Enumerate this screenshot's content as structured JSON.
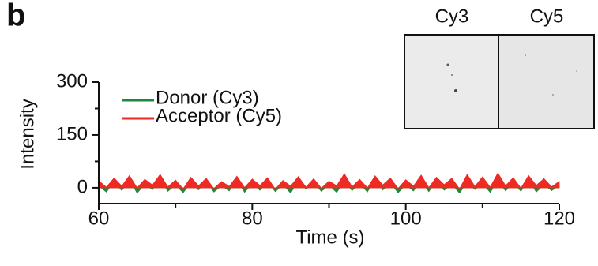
{
  "chart_data": {
    "type": "area",
    "panel_label": "b",
    "x_label": "Time (s)",
    "y_label": "Intensity",
    "xlim": [
      60,
      120
    ],
    "xticks": [
      60,
      80,
      100,
      120
    ],
    "xminorticks": [
      70,
      90,
      110
    ],
    "ylim": [
      -45,
      300
    ],
    "yticks": [
      0,
      150,
      300
    ],
    "yminorticks": [
      75,
      225
    ],
    "x": [
      60,
      61,
      62,
      63,
      64,
      65,
      66,
      67,
      68,
      69,
      70,
      71,
      72,
      73,
      74,
      75,
      76,
      77,
      78,
      79,
      80,
      81,
      82,
      83,
      84,
      85,
      86,
      87,
      88,
      89,
      90,
      91,
      92,
      93,
      94,
      95,
      96,
      97,
      98,
      99,
      100,
      101,
      102,
      103,
      104,
      105,
      106,
      107,
      108,
      109,
      110,
      111,
      112,
      113,
      114,
      115,
      116,
      117,
      118,
      119,
      120
    ],
    "series": [
      {
        "name": "Donor (Cy3)",
        "color": "#1b8a3f",
        "values": [
          5,
          -12,
          18,
          -8,
          22,
          -15,
          10,
          -5,
          25,
          -10,
          8,
          -14,
          15,
          -6,
          20,
          -12,
          6,
          -9,
          24,
          -13,
          12,
          -7,
          17,
          -11,
          9,
          -15,
          21,
          -4,
          14,
          -10,
          7,
          -13,
          19,
          -8,
          11,
          -12,
          26,
          -6,
          13,
          -14,
          8,
          -9,
          18,
          -11,
          22,
          -7,
          10,
          -15,
          16,
          -5,
          12,
          -13,
          20,
          -9,
          15,
          -10,
          23,
          -12,
          9,
          -8,
          6
        ]
      },
      {
        "name": "Acceptor (Cy5)",
        "color": "#ee2a24",
        "values": [
          20,
          2,
          28,
          5,
          35,
          0,
          24,
          8,
          38,
          3,
          22,
          -3,
          30,
          6,
          27,
          -2,
          18,
          4,
          33,
          1,
          25,
          7,
          29,
          -4,
          21,
          5,
          32,
          2,
          26,
          -1,
          19,
          6,
          40,
          3,
          24,
          0,
          34,
          8,
          28,
          -2,
          23,
          5,
          36,
          1,
          30,
          9,
          27,
          -3,
          38,
          4,
          31,
          2,
          42,
          6,
          29,
          -1,
          35,
          7,
          26,
          3,
          18
        ]
      }
    ],
    "inset": {
      "channels": [
        "Cy3",
        "Cy5"
      ]
    }
  }
}
